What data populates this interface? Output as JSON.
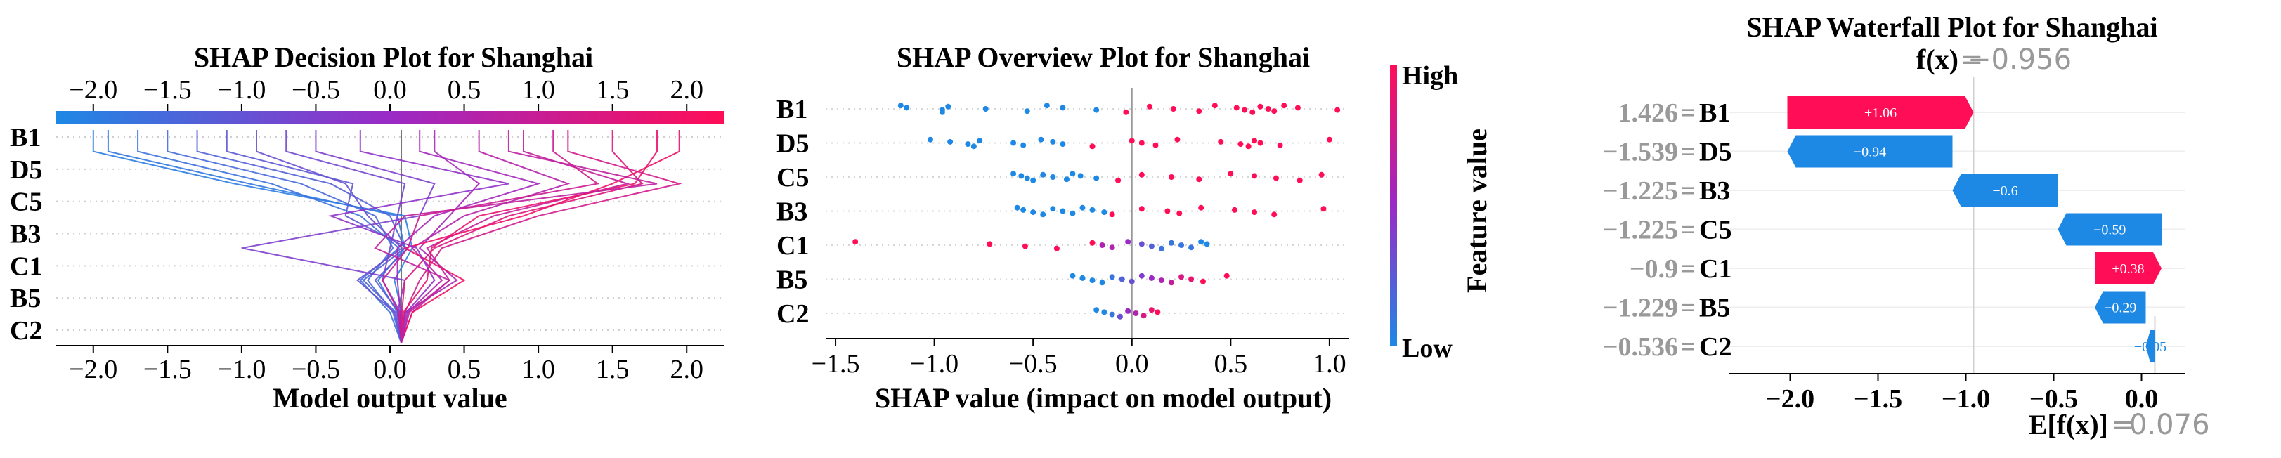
{
  "colors": {
    "shap_red": "#ff0d57",
    "shap_blue": "#1e88e5",
    "shap_purple": "#b71fc0",
    "grid": "#d9d9d9",
    "gray_text": "#999999",
    "black": "#000000"
  },
  "chart_data": [
    {
      "type": "line",
      "subtype": "shap_decision",
      "title": "SHAP Decision Plot for Shanghai",
      "xlabel": "Model output value",
      "xlim": [
        -2.25,
        2.25
      ],
      "xticks": [
        -2.0,
        -1.5,
        -1.0,
        -0.5,
        0.0,
        0.5,
        1.0,
        1.5,
        2.0
      ],
      "xtick_labels": [
        "−2.0",
        "−1.5",
        "−1.0",
        "−0.5",
        "0.0",
        "0.5",
        "1.0",
        "1.5",
        "2.0"
      ],
      "base_value": 0.076,
      "features_top_to_bottom": [
        "B1",
        "D5",
        "C5",
        "B3",
        "C1",
        "B5",
        "C2"
      ],
      "colorbar_range": [
        -2.25,
        2.25
      ],
      "series": [
        {
          "name": "s1",
          "x": [
            -2.0,
            -1.05,
            0.1,
            0.15,
            0.03,
            0.08,
            0.076
          ]
        },
        {
          "name": "s2",
          "x": [
            -1.9,
            -0.95,
            0.05,
            0.1,
            -0.08,
            0.05,
            0.076
          ]
        },
        {
          "name": "s3",
          "x": [
            -1.7,
            -0.8,
            -0.2,
            0.06,
            -0.2,
            0.0,
            0.076
          ]
        },
        {
          "name": "s4",
          "x": [
            -1.5,
            -0.6,
            -0.1,
            0.02,
            -0.15,
            0.02,
            0.076
          ]
        },
        {
          "name": "s5",
          "x": [
            -1.3,
            -0.4,
            0.0,
            0.1,
            -0.18,
            0.04,
            0.076
          ]
        },
        {
          "name": "s6",
          "x": [
            -1.1,
            -0.25,
            -0.3,
            0.12,
            -0.1,
            0.06,
            0.076
          ]
        },
        {
          "name": "s7",
          "x": [
            -0.9,
            -0.3,
            -0.15,
            0.08,
            -0.22,
            0.03,
            0.076
          ]
        },
        {
          "name": "s8",
          "x": [
            -0.7,
            0.1,
            0.05,
            0.0,
            -0.05,
            0.07,
            0.076
          ]
        },
        {
          "name": "s9",
          "x": [
            -0.5,
            0.3,
            0.2,
            -1.0,
            0.1,
            0.05,
            0.076
          ]
        },
        {
          "name": "s10",
          "x": [
            0.3,
            0.6,
            0.4,
            0.2,
            0.45,
            0.1,
            0.076
          ]
        },
        {
          "name": "s11",
          "x": [
            0.6,
            1.2,
            0.5,
            0.15,
            0.35,
            0.12,
            0.076
          ]
        },
        {
          "name": "s12",
          "x": [
            0.9,
            1.6,
            0.7,
            0.25,
            0.4,
            0.15,
            0.076
          ]
        },
        {
          "name": "s13",
          "x": [
            1.2,
            1.95,
            1.0,
            0.35,
            0.2,
            0.1,
            0.076
          ]
        },
        {
          "name": "s14",
          "x": [
            1.5,
            1.7,
            0.8,
            0.3,
            0.1,
            0.08,
            0.076
          ]
        },
        {
          "name": "s15",
          "x": [
            1.8,
            1.65,
            0.6,
            0.28,
            0.25,
            0.09,
            0.076
          ]
        },
        {
          "name": "s16",
          "x": [
            1.95,
            1.5,
            0.9,
            0.1,
            0.5,
            0.15,
            0.076
          ]
        },
        {
          "name": "s17",
          "x": [
            0.2,
            1.0,
            0.3,
            0.05,
            0.05,
            0.07,
            0.076
          ]
        },
        {
          "name": "s18",
          "x": [
            -0.2,
            0.8,
            -0.4,
            0.18,
            0.3,
            0.11,
            0.076
          ]
        },
        {
          "name": "s19",
          "x": [
            0.8,
            1.8,
            0.1,
            -0.1,
            0.4,
            0.13,
            0.076
          ]
        },
        {
          "name": "s20",
          "x": [
            1.1,
            1.4,
            0.2,
            0.12,
            -0.05,
            0.06,
            0.076
          ]
        }
      ]
    },
    {
      "type": "scatter",
      "subtype": "shap_beeswarm",
      "title": "SHAP Overview Plot for Shanghai",
      "xlabel": "SHAP value (impact on model output)",
      "xlim": [
        -1.55,
        1.1
      ],
      "xticks": [
        -1.5,
        -1.0,
        -0.5,
        0.0,
        0.5,
        1.0
      ],
      "xtick_labels": [
        "−1.5",
        "−1.0",
        "−0.5",
        "0.0",
        "0.5",
        "1.0"
      ],
      "features_top_to_bottom": [
        "B1",
        "D5",
        "C5",
        "B3",
        "C1",
        "B5",
        "C2"
      ],
      "colorbar_label": "Feature value",
      "colorbar_high": "High",
      "colorbar_low": "Low",
      "points": {
        "B1": [
          [
            -1.17,
            0
          ],
          [
            -1.14,
            0
          ],
          [
            -0.96,
            0
          ],
          [
            -0.96,
            0
          ],
          [
            -0.93,
            0
          ],
          [
            -0.74,
            0
          ],
          [
            -0.53,
            0
          ],
          [
            -0.43,
            0
          ],
          [
            -0.35,
            0
          ],
          [
            -0.18,
            0
          ],
          [
            -0.03,
            1
          ],
          [
            0.09,
            1
          ],
          [
            0.21,
            1
          ],
          [
            0.34,
            1
          ],
          [
            0.42,
            1
          ],
          [
            0.53,
            1
          ],
          [
            0.57,
            1
          ],
          [
            0.61,
            1
          ],
          [
            0.65,
            1
          ],
          [
            0.69,
            1
          ],
          [
            0.72,
            1
          ],
          [
            0.77,
            1
          ],
          [
            0.84,
            1
          ],
          [
            1.04,
            1
          ]
        ],
        "D5": [
          [
            -1.02,
            0
          ],
          [
            -0.92,
            0
          ],
          [
            -0.83,
            0
          ],
          [
            -0.8,
            0
          ],
          [
            -0.77,
            0
          ],
          [
            -0.6,
            0
          ],
          [
            -0.55,
            0
          ],
          [
            -0.46,
            0
          ],
          [
            -0.4,
            0
          ],
          [
            -0.35,
            0
          ],
          [
            -0.2,
            1
          ],
          [
            0.0,
            1
          ],
          [
            0.05,
            1
          ],
          [
            0.12,
            1
          ],
          [
            0.23,
            1
          ],
          [
            0.45,
            1
          ],
          [
            0.55,
            1
          ],
          [
            0.59,
            1
          ],
          [
            0.62,
            1
          ],
          [
            0.65,
            1
          ],
          [
            0.75,
            1
          ],
          [
            1.0,
            1
          ]
        ],
        "C5": [
          [
            -0.6,
            0
          ],
          [
            -0.56,
            0
          ],
          [
            -0.53,
            0
          ],
          [
            -0.5,
            0
          ],
          [
            -0.45,
            0
          ],
          [
            -0.4,
            0
          ],
          [
            -0.33,
            0
          ],
          [
            -0.3,
            0
          ],
          [
            -0.26,
            0
          ],
          [
            -0.18,
            0
          ],
          [
            -0.07,
            1
          ],
          [
            0.05,
            1
          ],
          [
            0.2,
            1
          ],
          [
            0.34,
            1
          ],
          [
            0.5,
            1
          ],
          [
            0.62,
            1
          ],
          [
            0.73,
            1
          ],
          [
            0.85,
            1
          ],
          [
            0.96,
            1
          ]
        ],
        "B3": [
          [
            -0.58,
            0
          ],
          [
            -0.55,
            0
          ],
          [
            -0.5,
            0
          ],
          [
            -0.45,
            0
          ],
          [
            -0.4,
            0
          ],
          [
            -0.35,
            0
          ],
          [
            -0.3,
            0
          ],
          [
            -0.25,
            0
          ],
          [
            -0.2,
            0
          ],
          [
            -0.14,
            0
          ],
          [
            -0.1,
            1
          ],
          [
            0.05,
            1
          ],
          [
            0.18,
            1
          ],
          [
            0.24,
            1
          ],
          [
            0.35,
            1
          ],
          [
            0.52,
            1
          ],
          [
            0.62,
            1
          ],
          [
            0.72,
            1
          ],
          [
            0.97,
            1
          ]
        ],
        "C1": [
          [
            -1.4,
            1
          ],
          [
            -0.72,
            1
          ],
          [
            -0.54,
            1
          ],
          [
            -0.38,
            1
          ],
          [
            -0.2,
            1
          ],
          [
            -0.15,
            0.6
          ],
          [
            -0.1,
            0.6
          ],
          [
            -0.02,
            0.5
          ],
          [
            0.05,
            0.3
          ],
          [
            0.1,
            0.2
          ],
          [
            0.15,
            0.1
          ],
          [
            0.2,
            0.1
          ],
          [
            0.25,
            0.1
          ],
          [
            0.3,
            0.1
          ],
          [
            0.35,
            0
          ],
          [
            0.38,
            0
          ]
        ],
        "B5": [
          [
            -0.3,
            0
          ],
          [
            -0.25,
            0
          ],
          [
            -0.2,
            0
          ],
          [
            -0.15,
            0
          ],
          [
            -0.1,
            0.1
          ],
          [
            -0.05,
            0.2
          ],
          [
            0.0,
            0.3
          ],
          [
            0.05,
            0.4
          ],
          [
            0.1,
            0.5
          ],
          [
            0.15,
            0.6
          ],
          [
            0.2,
            0.7
          ],
          [
            0.25,
            0.8
          ],
          [
            0.3,
            0.9
          ],
          [
            0.36,
            1
          ],
          [
            0.48,
            1
          ]
        ],
        "C2": [
          [
            -0.18,
            0
          ],
          [
            -0.14,
            0
          ],
          [
            -0.1,
            0.1
          ],
          [
            -0.06,
            0.3
          ],
          [
            -0.02,
            0.5
          ],
          [
            0.02,
            0.6
          ],
          [
            0.06,
            0.8
          ],
          [
            0.1,
            0.9
          ],
          [
            0.13,
            1
          ]
        ]
      }
    },
    {
      "type": "bar",
      "subtype": "shap_waterfall",
      "title": "SHAP Waterfall Plot for Shanghai",
      "fx_label": "f(x)",
      "fx_value": "−0.956",
      "efx_label": "E[f(x)]",
      "efx_value": "0.076",
      "xlim": [
        -2.35,
        0.25
      ],
      "xticks": [
        -2.0,
        -1.5,
        -1.0,
        -0.5,
        0.0
      ],
      "xtick_labels": [
        "−2.0",
        "−1.5",
        "−1.0",
        "−0.5",
        "0.0"
      ],
      "fx": -0.956,
      "base_value": 0.076,
      "rows": [
        {
          "feature_value": "1.426",
          "feature": "B1",
          "shap": 1.06,
          "label": "+1.06",
          "start": -2.016,
          "end": -0.956
        },
        {
          "feature_value": "−1.539",
          "feature": "D5",
          "shap": -0.94,
          "label": "−0.94",
          "start": -1.076,
          "end": -2.016
        },
        {
          "feature_value": "−1.225",
          "feature": "B3",
          "shap": -0.6,
          "label": "−0.6",
          "start": -0.476,
          "end": -1.076
        },
        {
          "feature_value": "−1.225",
          "feature": "C5",
          "shap": -0.59,
          "label": "−0.59",
          "start": 0.114,
          "end": -0.476
        },
        {
          "feature_value": "−0.9",
          "feature": "C1",
          "shap": 0.38,
          "label": "+0.38",
          "start": -0.266,
          "end": 0.114
        },
        {
          "feature_value": "−1.229",
          "feature": "B5",
          "shap": -0.29,
          "label": "−0.29",
          "start": 0.024,
          "end": -0.266
        },
        {
          "feature_value": "−0.536",
          "feature": "C2",
          "shap": -0.05,
          "label": "−0.05",
          "start": 0.076,
          "end": 0.024
        }
      ]
    }
  ]
}
